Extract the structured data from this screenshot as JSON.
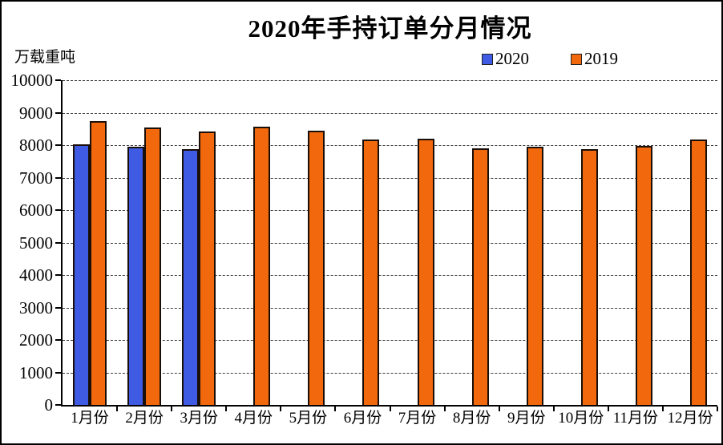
{
  "chart_data": {
    "type": "bar",
    "title": "2020年手持订单分月情况",
    "y_unit_label": "万载重吨",
    "xlabel": "",
    "ylabel": "万载重吨",
    "categories": [
      "1月份",
      "2月份",
      "3月份",
      "4月份",
      "5月份",
      "6月份",
      "7月份",
      "8月份",
      "9月份",
      "10月份",
      "11月份",
      "12月份"
    ],
    "series": [
      {
        "name": "2020",
        "color": "#3F5BE4",
        "values": [
          8031,
          7953,
          7887,
          null,
          null,
          null,
          null,
          null,
          null,
          null,
          null,
          null
        ]
      },
      {
        "name": "2019",
        "color": "#F2690D",
        "values": [
          8736,
          8538,
          8428,
          8570,
          8439,
          8172,
          8210,
          7911,
          7949,
          7881,
          7981,
          8166
        ]
      }
    ],
    "ylim": [
      0,
      10000
    ],
    "y_ticks": [
      0,
      1000,
      2000,
      3000,
      4000,
      5000,
      6000,
      7000,
      8000,
      9000,
      10000
    ],
    "grid": "horizontal-dashed",
    "legend_position": "top-right",
    "bar_border_color": "#1A0E08",
    "axis_color": "#000000",
    "gridline_color": "#3C3C3C",
    "background_color": "#FFFFFF"
  }
}
